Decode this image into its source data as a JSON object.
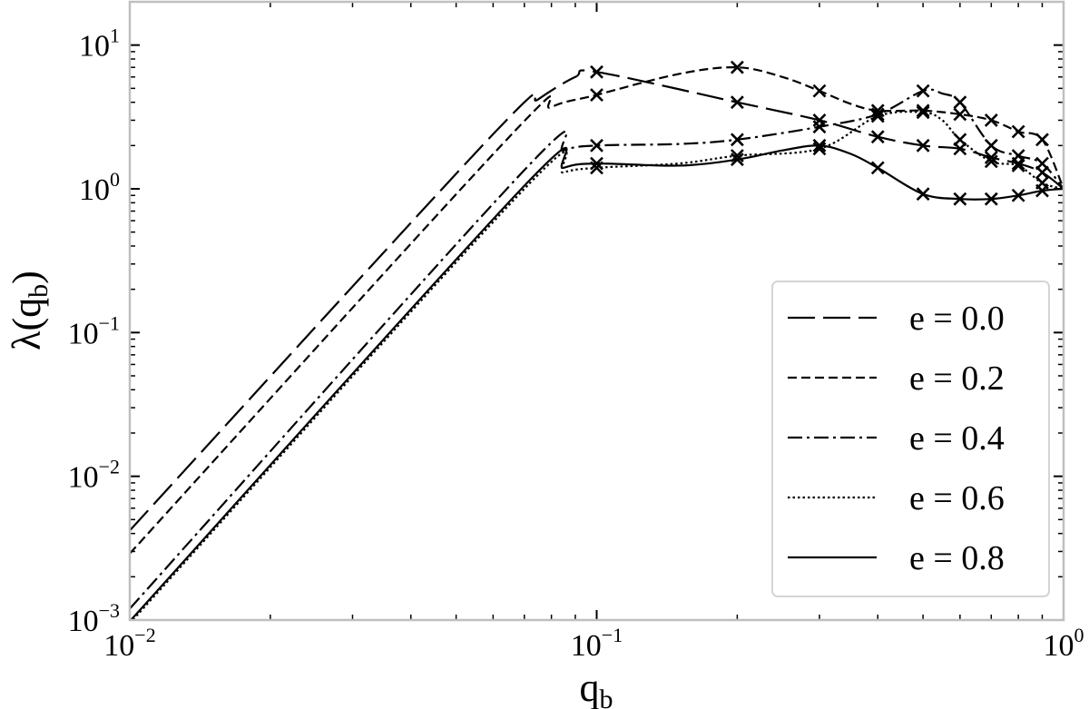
{
  "chart_data": {
    "type": "line",
    "title": "",
    "xscale": "log",
    "yscale": "log",
    "xlim": [
      0.01,
      1
    ],
    "ylim": [
      0.001,
      20
    ],
    "x_label": {
      "base": "q",
      "subscript": "b"
    },
    "y_label": {
      "prefix": "λ(q",
      "subscript": "b",
      "suffix": ")"
    },
    "x_ticks": [
      {
        "value": 0.01,
        "base": "10",
        "exp": "−2"
      },
      {
        "value": 0.1,
        "base": "10",
        "exp": "−1"
      },
      {
        "value": 1,
        "base": "10",
        "exp": "0"
      }
    ],
    "y_ticks": [
      {
        "value": 0.001,
        "base": "10",
        "exp": "−3"
      },
      {
        "value": 0.01,
        "base": "10",
        "exp": "−2"
      },
      {
        "value": 0.1,
        "base": "10",
        "exp": "−1"
      },
      {
        "value": 1,
        "base": "10",
        "exp": "0"
      },
      {
        "value": 10,
        "base": "10",
        "exp": "1"
      }
    ],
    "legend_position": "lower-right",
    "grid": false,
    "line_color": "#000000",
    "series": [
      {
        "name": "e = 0.0",
        "dash": "long-dash",
        "curve": [
          [
            0.01,
            0.0042
          ],
          [
            0.06,
            2.4
          ],
          [
            0.075,
            4.2
          ],
          [
            0.09,
            6.0
          ],
          [
            0.1,
            6.5
          ],
          [
            0.2,
            4.0
          ],
          [
            0.3,
            3.0
          ],
          [
            0.4,
            2.3
          ],
          [
            0.5,
            2.0
          ],
          [
            0.6,
            1.9
          ],
          [
            0.7,
            1.65
          ],
          [
            0.8,
            1.5
          ],
          [
            0.9,
            1.3
          ],
          [
            1.0,
            1.0
          ]
        ],
        "markers": [
          [
            0.1,
            6.5
          ],
          [
            0.2,
            4.0
          ],
          [
            0.3,
            3.0
          ],
          [
            0.4,
            2.3
          ],
          [
            0.5,
            2.0
          ],
          [
            0.6,
            1.9
          ],
          [
            0.7,
            1.65
          ],
          [
            0.8,
            1.5
          ],
          [
            0.9,
            1.3
          ]
        ]
      },
      {
        "name": "e = 0.2",
        "dash": "short-dash",
        "curve": [
          [
            0.01,
            0.0029
          ],
          [
            0.065,
            2.3
          ],
          [
            0.08,
            3.7
          ],
          [
            0.1,
            4.5
          ],
          [
            0.15,
            6.3
          ],
          [
            0.2,
            7.0
          ],
          [
            0.25,
            6.0
          ],
          [
            0.3,
            4.8
          ],
          [
            0.35,
            3.9
          ],
          [
            0.4,
            3.5
          ],
          [
            0.5,
            3.5
          ],
          [
            0.6,
            3.3
          ],
          [
            0.7,
            3.0
          ],
          [
            0.8,
            2.5
          ],
          [
            0.9,
            2.2
          ],
          [
            1.0,
            1.0
          ]
        ],
        "markers": [
          [
            0.1,
            4.5
          ],
          [
            0.2,
            7.0
          ],
          [
            0.3,
            4.8
          ],
          [
            0.4,
            3.5
          ],
          [
            0.5,
            3.5
          ],
          [
            0.6,
            3.3
          ],
          [
            0.7,
            3.0
          ],
          [
            0.8,
            2.5
          ],
          [
            0.9,
            2.2
          ]
        ]
      },
      {
        "name": "e = 0.4",
        "dash": "dash-dot",
        "curve": [
          [
            0.01,
            0.0012
          ],
          [
            0.07,
            1.35
          ],
          [
            0.085,
            1.85
          ],
          [
            0.1,
            2.0
          ],
          [
            0.15,
            2.05
          ],
          [
            0.2,
            2.2
          ],
          [
            0.3,
            2.7
          ],
          [
            0.4,
            3.3
          ],
          [
            0.5,
            4.8
          ],
          [
            0.55,
            4.6
          ],
          [
            0.6,
            4.0
          ],
          [
            0.7,
            2.0
          ],
          [
            0.8,
            1.7
          ],
          [
            0.9,
            1.5
          ],
          [
            1.0,
            1.0
          ]
        ],
        "markers": [
          [
            0.1,
            2.0
          ],
          [
            0.2,
            2.2
          ],
          [
            0.3,
            2.7
          ],
          [
            0.4,
            3.3
          ],
          [
            0.5,
            4.8
          ],
          [
            0.6,
            4.0
          ],
          [
            0.7,
            2.0
          ],
          [
            0.8,
            1.7
          ],
          [
            0.9,
            1.5
          ]
        ]
      },
      {
        "name": "e = 0.6",
        "dash": "dotted",
        "curve": [
          [
            0.01,
            0.00095
          ],
          [
            0.07,
            1.0
          ],
          [
            0.085,
            1.3
          ],
          [
            0.1,
            1.4
          ],
          [
            0.15,
            1.5
          ],
          [
            0.2,
            1.7
          ],
          [
            0.3,
            1.9
          ],
          [
            0.4,
            3.2
          ],
          [
            0.5,
            3.4
          ],
          [
            0.55,
            3.0
          ],
          [
            0.6,
            2.2
          ],
          [
            0.7,
            1.55
          ],
          [
            0.8,
            1.45
          ],
          [
            0.9,
            1.1
          ],
          [
            1.0,
            1.0
          ]
        ],
        "markers": [
          [
            0.1,
            1.4
          ],
          [
            0.2,
            1.7
          ],
          [
            0.3,
            1.9
          ],
          [
            0.4,
            3.2
          ],
          [
            0.5,
            3.4
          ],
          [
            0.6,
            2.2
          ],
          [
            0.7,
            1.55
          ],
          [
            0.8,
            1.45
          ],
          [
            0.9,
            1.1
          ]
        ]
      },
      {
        "name": "e = 0.8",
        "dash": "solid",
        "curve": [
          [
            0.01,
            0.00098
          ],
          [
            0.07,
            1.05
          ],
          [
            0.085,
            1.4
          ],
          [
            0.1,
            1.5
          ],
          [
            0.15,
            1.45
          ],
          [
            0.2,
            1.6
          ],
          [
            0.25,
            1.85
          ],
          [
            0.3,
            2.0
          ],
          [
            0.35,
            1.75
          ],
          [
            0.4,
            1.4
          ],
          [
            0.5,
            0.92
          ],
          [
            0.6,
            0.85
          ],
          [
            0.7,
            0.85
          ],
          [
            0.8,
            0.9
          ],
          [
            0.9,
            0.97
          ],
          [
            1.0,
            1.0
          ]
        ],
        "markers": [
          [
            0.1,
            1.5
          ],
          [
            0.2,
            1.6
          ],
          [
            0.3,
            2.0
          ],
          [
            0.4,
            1.4
          ],
          [
            0.5,
            0.92
          ],
          [
            0.6,
            0.85
          ],
          [
            0.7,
            0.85
          ],
          [
            0.8,
            0.9
          ],
          [
            0.9,
            0.97
          ]
        ]
      }
    ]
  }
}
